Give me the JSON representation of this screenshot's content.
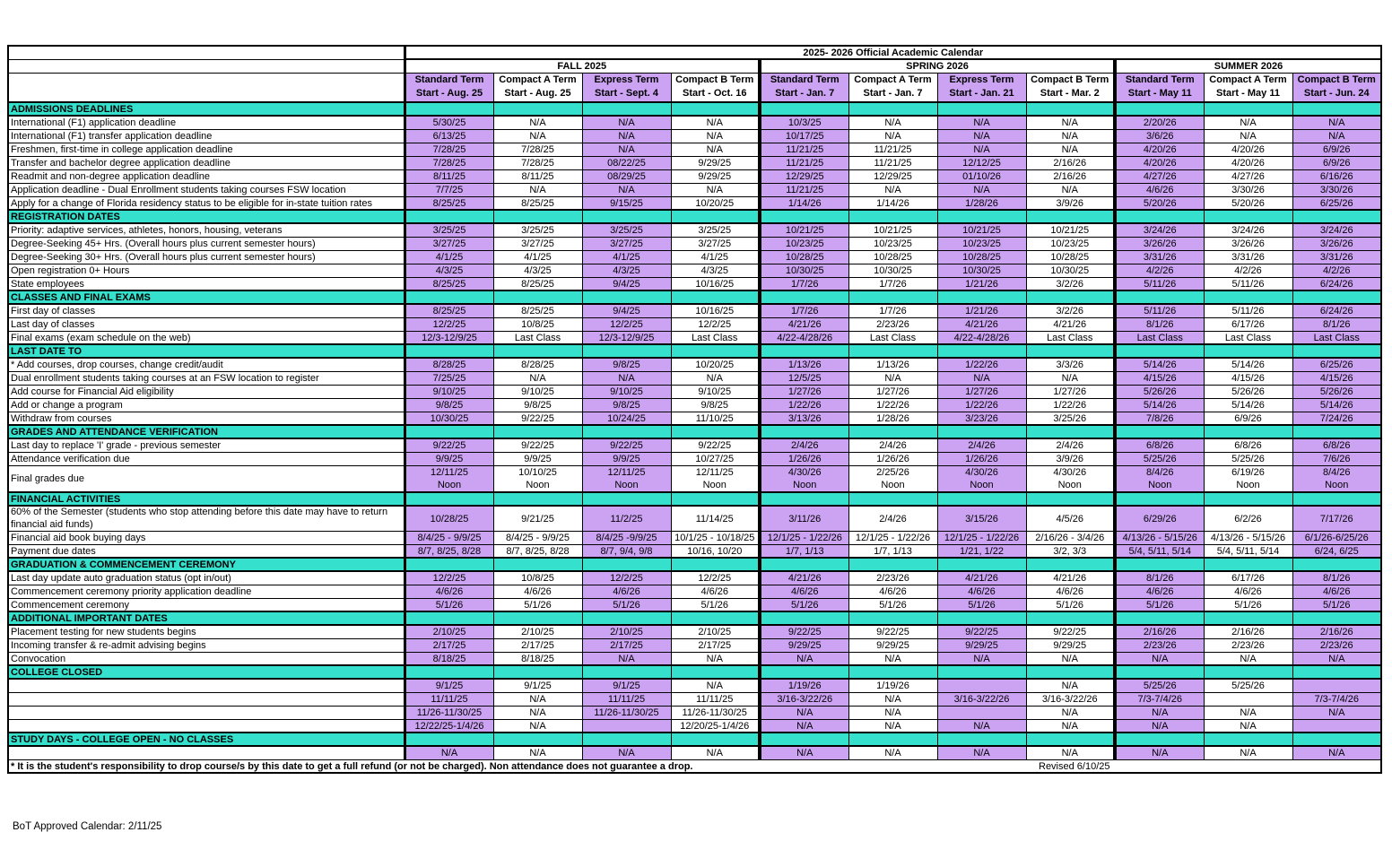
{
  "title": "2025- 2026 Official Academic Calendar",
  "colors": {
    "teal": "#35E0CD",
    "purple": "#CCA3F3",
    "border": "#000000",
    "background": "#FFFFFF"
  },
  "groups": [
    {
      "label": "FALL 2025",
      "span": 4
    },
    {
      "label": "SPRING 2026",
      "span": 4
    },
    {
      "label": "SUMMER 2026",
      "span": 3
    }
  ],
  "columns": [
    {
      "term": "Standard Term",
      "start": "Start - Aug. 25",
      "purple": true
    },
    {
      "term": "Compact A Term",
      "start": "Start - Aug. 25",
      "purple": false
    },
    {
      "term": "Express Term",
      "start": "Start - Sept. 4",
      "purple": true
    },
    {
      "term": "Compact B Term",
      "start": "Start - Oct. 16",
      "purple": false
    },
    {
      "term": "Standard Term",
      "start": "Start - Jan. 7",
      "purple": true
    },
    {
      "term": "Compact A Term",
      "start": "Start - Jan. 7",
      "purple": false
    },
    {
      "term": "Express Term",
      "start": "Start - Jan. 21",
      "purple": true
    },
    {
      "term": "Compact B Term",
      "start": "Start - Mar. 2",
      "purple": false
    },
    {
      "term": "Standard Term",
      "start": "Start - May 11",
      "purple": true
    },
    {
      "term": "Compact A Term",
      "start": "Start - May 11",
      "purple": false
    },
    {
      "term": "Compact B Term",
      "start": "Start - Jun. 24",
      "purple": true
    }
  ],
  "sections": [
    {
      "header": "ADMISSIONS DEADLINES",
      "rows": [
        {
          "label": "International (F1) application deadline",
          "values": [
            "5/30/25",
            "N/A",
            "N/A",
            "N/A",
            "10/3/25",
            "N/A",
            "N/A",
            "N/A",
            "2/20/26",
            "N/A",
            "N/A"
          ]
        },
        {
          "label": "International (F1) transfer application deadline",
          "values": [
            "6/13/25",
            "N/A",
            "N/A",
            "N/A",
            "10/17/25",
            "N/A",
            "N/A",
            "N/A",
            "3/6/26",
            "N/A",
            "N/A"
          ]
        },
        {
          "label": "Freshmen, first-time in college application deadline",
          "values": [
            "7/28/25",
            "7/28/25",
            "N/A",
            "N/A",
            "11/21/25",
            "11/21/25",
            "N/A",
            "N/A",
            "4/20/26",
            "4/20/26",
            "6/9/26"
          ]
        },
        {
          "label": "Transfer and bachelor degree application deadline",
          "values": [
            "7/28/25",
            "7/28/25",
            "08/22/25",
            "9/29/25",
            "11/21/25",
            "11/21/25",
            "12/12/25",
            "2/16/26",
            "4/20/26",
            "4/20/26",
            "6/9/26"
          ]
        },
        {
          "label": "Readmit and non-degree application deadline",
          "values": [
            "8/11/25",
            "8/11/25",
            "08/29/25",
            "9/29/25",
            "12/29/25",
            "12/29/25",
            "01/10/26",
            "2/16/26",
            "4/27/26",
            "4/27/26",
            "6/16/26"
          ]
        },
        {
          "label": "Application deadline - Dual Enrollment students taking courses FSW location",
          "values": [
            "7/7/25",
            "N/A",
            "N/A",
            "N/A",
            "11/21/25",
            "N/A",
            "N/A",
            "N/A",
            "4/6/26",
            "3/30/26",
            "3/30/26"
          ]
        },
        {
          "label": "Apply for a change of Florida residency status to be eligible for in-state tuition rates",
          "h": "tall",
          "values": [
            "8/25/25",
            "8/25/25",
            "9/15/25",
            "10/20/25",
            "1/14/26",
            "1/14/26",
            "1/28/26",
            "3/9/26",
            "5/20/26",
            "5/20/26",
            "6/25/26"
          ]
        }
      ]
    },
    {
      "header": "REGISTRATION DATES",
      "rows": [
        {
          "label": "Priority: adaptive services, athletes, honors, housing, veterans",
          "values": [
            "3/25/25",
            "3/25/25",
            "3/25/25",
            "3/25/25",
            "10/21/25",
            "10/21/25",
            "10/21/25",
            "10/21/25",
            "3/24/26",
            "3/24/26",
            "3/24/26"
          ]
        },
        {
          "label": "Degree-Seeking 45+ Hrs. (Overall hours plus current semester hours)",
          "values": [
            "3/27/25",
            "3/27/25",
            "3/27/25",
            "3/27/25",
            "10/23/25",
            "10/23/25",
            "10/23/25",
            "10/23/25",
            "3/26/26",
            "3/26/26",
            "3/26/26"
          ]
        },
        {
          "label": "Degree-Seeking 30+ Hrs. (Overall hours plus current semester hours)",
          "values": [
            "4/1/25",
            "4/1/25",
            "4/1/25",
            "4/1/25",
            "10/28/25",
            "10/28/25",
            "10/28/25",
            "10/28/25",
            "3/31/26",
            "3/31/26",
            "3/31/26"
          ]
        },
        {
          "label": "Open registration 0+ Hours",
          "values": [
            "4/3/25",
            "4/3/25",
            "4/3/25",
            "4/3/25",
            "10/30/25",
            "10/30/25",
            "10/30/25",
            "10/30/25",
            "4/2/26",
            "4/2/26",
            "4/2/26"
          ]
        },
        {
          "label": "State employees",
          "values": [
            "8/25/25",
            "8/25/25",
            "9/4/25",
            "10/16/25",
            "1/7/26",
            "1/7/26",
            "1/21/26",
            "3/2/26",
            "5/11/26",
            "5/11/26",
            "6/24/26"
          ]
        }
      ]
    },
    {
      "header": "CLASSES AND FINAL EXAMS",
      "rows": [
        {
          "label": "First day of classes",
          "values": [
            "8/25/25",
            "8/25/25",
            "9/4/25",
            "10/16/25",
            "1/7/26",
            "1/7/26",
            "1/21/26",
            "3/2/26",
            "5/11/26",
            "5/11/26",
            "6/24/26"
          ]
        },
        {
          "label": "Last day of classes",
          "values": [
            "12/2/25",
            "10/8/25",
            "12/2/25",
            "12/2/25",
            "4/21/26",
            "2/23/26",
            "4/21/26",
            "4/21/26",
            "8/1/26",
            "6/17/26",
            "8/1/26"
          ]
        },
        {
          "label": "Final exams (exam schedule on the web)",
          "values": [
            "12/3-12/9/25",
            "Last Class",
            "12/3-12/9/25",
            "Last Class",
            "4/22-4/28/26",
            "Last Class",
            "4/22-4/28/26",
            "Last Class",
            "Last Class",
            "Last Class",
            "Last Class"
          ]
        }
      ]
    },
    {
      "header": "LAST DATE TO",
      "rows": [
        {
          "label": "* Add courses, drop courses, change credit/audit",
          "values": [
            "8/28/25",
            "8/28/25",
            "9/8/25",
            "10/20/25",
            "1/13/26",
            "1/13/26",
            "1/22/26",
            "3/3/26",
            "5/14/26",
            "5/14/26",
            "6/25/26"
          ]
        },
        {
          "label": "Dual enrollment students taking courses at an FSW location to register",
          "values": [
            "7/25/25",
            "N/A",
            "N/A",
            "N/A",
            "12/5/25",
            "N/A",
            "N/A",
            "N/A",
            "4/15/26",
            "4/15/26",
            "4/15/26"
          ]
        },
        {
          "label": "Add course for Financial Aid eligibility",
          "values": [
            "9/10/25",
            "9/10/25",
            "9/10/25",
            "9/10/25",
            "1/27/26",
            "1/27/26",
            "1/27/26",
            "1/27/26",
            "5/26/26",
            "5/26/26",
            "5/26/26"
          ]
        },
        {
          "label": "Add or change a program",
          "values": [
            "9/8/25",
            "9/8/25",
            "9/8/25",
            "9/8/25",
            "1/22/26",
            "1/22/26",
            "1/22/26",
            "1/22/26",
            "5/14/26",
            "5/14/26",
            "5/14/26"
          ]
        },
        {
          "label": "Withdraw from courses",
          "values": [
            "10/30/25",
            "9/22/25",
            "10/24/25",
            "11/10/25",
            "3/13/26",
            "1/28/26",
            "3/23/26",
            "3/25/26",
            "7/8/26",
            "6/9/26",
            "7/24/26"
          ]
        }
      ]
    },
    {
      "header": "GRADES AND ATTENDANCE VERIFICATION",
      "rows": [
        {
          "label": "Last day to replace 'I' grade - previous semester",
          "values": [
            "9/22/25",
            "9/22/25",
            "9/22/25",
            "9/22/25",
            "2/4/26",
            "2/4/26",
            "2/4/26",
            "2/4/26",
            "6/8/26",
            "6/8/26",
            "6/8/26"
          ]
        },
        {
          "label": "Attendance verification due",
          "values": [
            "9/9/25",
            "9/9/25",
            "9/9/25",
            "10/27/25",
            "1/26/26",
            "1/26/26",
            "1/26/26",
            "3/9/26",
            "5/25/26",
            "5/25/26",
            "7/6/26"
          ]
        },
        {
          "label": "Final grades due",
          "h": "two",
          "values": [
            "12/11/25\nNoon",
            "10/10/25\nNoon",
            "12/11/25\nNoon",
            "12/11/25\nNoon",
            "4/30/26\nNoon",
            "2/25/26\nNoon",
            "4/30/26\nNoon",
            "4/30/26\nNoon",
            "8/4/26\nNoon",
            "6/19/26\nNoon",
            "8/4/26\nNoon"
          ]
        }
      ]
    },
    {
      "header": "FINANCIAL ACTIVITIES",
      "rows": [
        {
          "label": "60% of the Semester (students who stop attending before this date may have to return financial aid funds)",
          "h": "wrap",
          "values": [
            "10/28/25",
            "9/21/25",
            "11/2/25",
            "11/14/25",
            "3/11/26",
            "2/4/26",
            "3/15/26",
            "4/5/26",
            "6/29/26",
            "6/2/26",
            "7/17/26"
          ]
        },
        {
          "label": "Financial aid book buying days",
          "values": [
            "8/4/25 - 9/9/25",
            "8/4/25 - 9/9/25",
            "8/4/25 -9/9/25",
            "10/1/25 - 10/18/25",
            "12/1/25 - 1/22/26",
            "12/1/25 - 1/22/26",
            "12/1/25 - 1/22/26",
            "2/16/26 - 3/4/26",
            "4/13/26 - 5/15/26",
            "4/13/26 - 5/15/26",
            "6/1/26-6/25/26"
          ]
        },
        {
          "label": "Payment due dates",
          "values": [
            "8/7, 8/25, 8/28",
            "8/7, 8/25, 8/28",
            "8/7, 9/4, 9/8",
            "10/16, 10/20",
            "1/7, 1/13",
            "1/7, 1/13",
            "1/21, 1/22",
            "3/2, 3/3",
            "5/4, 5/11, 5/14",
            "5/4, 5/11, 5/14",
            "6/24, 6/25"
          ]
        }
      ]
    },
    {
      "header": "GRADUATION & COMMENCEMENT CEREMONY",
      "rows": [
        {
          "label": "Last day update auto graduation status (opt in/out)",
          "values": [
            "12/2/25",
            "10/8/25",
            "12/2/25",
            "12/2/25",
            "4/21/26",
            "2/23/26",
            "4/21/26",
            "4/21/26",
            "8/1/26",
            "6/17/26",
            "8/1/26"
          ]
        },
        {
          "label": "Commencement ceremony priority application deadline",
          "values": [
            "4/6/26",
            "4/6/26",
            "4/6/26",
            "4/6/26",
            "4/6/26",
            "4/6/26",
            "4/6/26",
            "4/6/26",
            "4/6/26",
            "4/6/26",
            "4/6/26"
          ]
        },
        {
          "label": "Commencement ceremony",
          "values": [
            "5/1/26",
            "5/1/26",
            "5/1/26",
            "5/1/26",
            "5/1/26",
            "5/1/26",
            "5/1/26",
            "5/1/26",
            "5/1/26",
            "5/1/26",
            "5/1/26"
          ]
        }
      ]
    },
    {
      "header": "ADDITIONAL IMPORTANT DATES",
      "rows": [
        {
          "label": "Placement testing for new students begins",
          "values": [
            "2/10/25",
            "2/10/25",
            "2/10/25",
            "2/10/25",
            "9/22/25",
            "9/22/25",
            "9/22/25",
            "9/22/25",
            "2/16/26",
            "2/16/26",
            "2/16/26"
          ]
        },
        {
          "label": "Incoming transfer & re-admit advising begins",
          "values": [
            "2/17/25",
            "2/17/25",
            "2/17/25",
            "2/17/25",
            "9/29/25",
            "9/29/25",
            "9/29/25",
            "9/29/25",
            "2/23/26",
            "2/23/26",
            "2/23/26"
          ]
        },
        {
          "label": "Convocation",
          "values": [
            "8/18/25",
            "8/18/25",
            "N/A",
            "N/A",
            "N/A",
            "N/A",
            "N/A",
            "N/A",
            "N/A",
            "N/A",
            "N/A"
          ]
        }
      ]
    },
    {
      "header": "COLLEGE CLOSED",
      "rows": [
        {
          "label": "",
          "values": [
            "9/1/25",
            "9/1/25",
            "9/1/25",
            "N/A",
            "1/19/26",
            "1/19/26",
            "",
            "N/A",
            "5/25/26",
            "5/25/26",
            ""
          ]
        },
        {
          "label": "",
          "values": [
            "11/11/25",
            "N/A",
            "11/11/25",
            "11/11/25",
            "3/16-3/22/26",
            "N/A",
            "3/16-3/22/26",
            "3/16-3/22/26",
            "7/3-7/4/26",
            "",
            "7/3-7/4/26"
          ]
        },
        {
          "label": "",
          "values": [
            "11/26-11/30/25",
            "N/A",
            "11/26-11/30/25",
            "11/26-11/30/25",
            "N/A",
            "N/A",
            "",
            "N/A",
            "N/A",
            "N/A",
            "N/A"
          ]
        },
        {
          "label": "",
          "values": [
            "12/22/25-1/4/26",
            "N/A",
            "",
            "12/20/25-1/4/26",
            "N/A",
            "N/A",
            "N/A",
            "N/A",
            "N/A",
            "N/A",
            ""
          ]
        }
      ]
    },
    {
      "header": "STUDY DAYS - COLLEGE OPEN - NO CLASSES",
      "rows": [
        {
          "label": "",
          "values": [
            "N/A",
            "N/A",
            "N/A",
            "N/A",
            "N/A",
            "N/A",
            "N/A",
            "N/A",
            "N/A",
            "N/A",
            "N/A"
          ]
        }
      ]
    }
  ],
  "footnote": "*  It is the student's responsibility to drop course/s by this date to get a full refund (or not be charged). Non attendance does not guarantee a drop.",
  "revised": "Revised 6/10/25",
  "bot_approved": "BoT Approved Calendar: 2/11/25"
}
